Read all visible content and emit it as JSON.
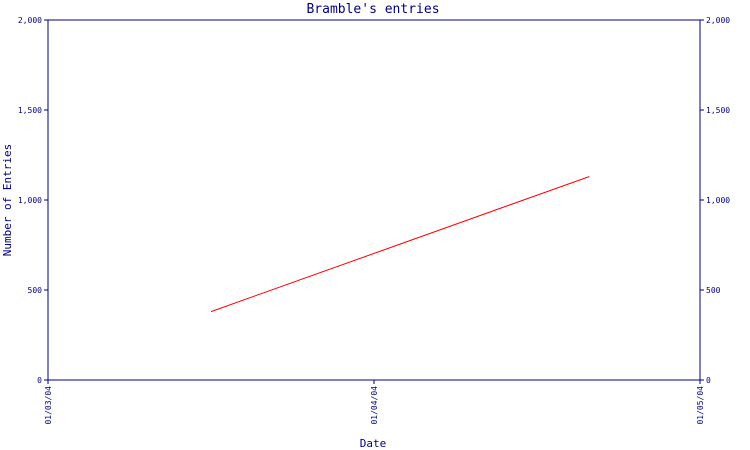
{
  "chart_data": {
    "type": "line",
    "title": "Bramble's entries",
    "xlabel": "Date",
    "ylabel": "Number of Entries",
    "x_ticks": [
      "01/03/04",
      "01/04/04",
      "01/05/04"
    ],
    "y_ticks": [
      "0",
      "500",
      "1,000",
      "1,500",
      "2,000"
    ],
    "ylim": [
      0,
      2000
    ],
    "xlim": [
      "01/03/04",
      "01/05/04"
    ],
    "right_axis_mirrors_left": true,
    "grid": false,
    "series": [
      {
        "color": "#ff0000",
        "points": [
          {
            "x": "01/03/04 + 0.5 interval",
            "x_frac": 0.25,
            "y": 380
          },
          {
            "x": "01/04/04 + 0.67 interval",
            "x_frac": 0.83,
            "y": 1130
          }
        ]
      }
    ]
  }
}
